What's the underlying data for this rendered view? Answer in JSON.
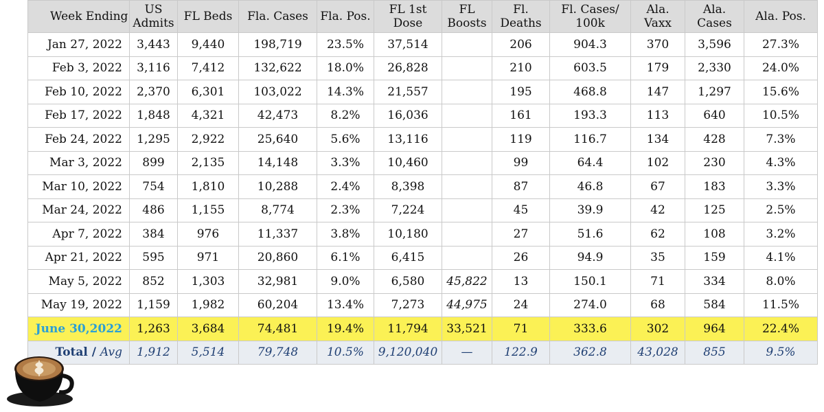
{
  "columns": [
    "Week Ending",
    "US Admits",
    "FL Beds",
    "Fla. Cases",
    "Fla. Pos.",
    "FL 1st Dose",
    "FL Boosts",
    "Fl. Deaths",
    "Fl. Cases/ 100k",
    "Ala. Vaxx",
    "Ala. Cases",
    "Ala. Pos."
  ],
  "rows": [
    {
      "week": "Jan 27, 2022",
      "us_admits": "3,443",
      "fl_beds": "9,440",
      "fla_cases": "198,719",
      "fla_pos": "23.5%",
      "fl_1st_dose": "37,514",
      "fl_boosts": "",
      "fl_deaths": "206",
      "fl_cases_100k": "904.3",
      "ala_vaxx": "370",
      "ala_cases": "3,596",
      "ala_pos": "27.3%"
    },
    {
      "week": "Feb 3, 2022",
      "us_admits": "3,116",
      "fl_beds": "7,412",
      "fla_cases": "132,622",
      "fla_pos": "18.0%",
      "fl_1st_dose": "26,828",
      "fl_boosts": "",
      "fl_deaths": "210",
      "fl_cases_100k": "603.5",
      "ala_vaxx": "179",
      "ala_cases": "2,330",
      "ala_pos": "24.0%"
    },
    {
      "week": "Feb 10, 2022",
      "us_admits": "2,370",
      "fl_beds": "6,301",
      "fla_cases": "103,022",
      "fla_pos": "14.3%",
      "fl_1st_dose": "21,557",
      "fl_boosts": "",
      "fl_deaths": "195",
      "fl_cases_100k": "468.8",
      "ala_vaxx": "147",
      "ala_cases": "1,297",
      "ala_pos": "15.6%"
    },
    {
      "week": "Feb 17, 2022",
      "us_admits": "1,848",
      "fl_beds": "4,321",
      "fla_cases": "42,473",
      "fla_pos": "8.2%",
      "fl_1st_dose": "16,036",
      "fl_boosts": "",
      "fl_deaths": "161",
      "fl_cases_100k": "193.3",
      "ala_vaxx": "113",
      "ala_cases": "640",
      "ala_pos": "10.5%"
    },
    {
      "week": "Feb 24, 2022",
      "us_admits": "1,295",
      "fl_beds": "2,922",
      "fla_cases": "25,640",
      "fla_pos": "5.6%",
      "fl_1st_dose": "13,116",
      "fl_boosts": "",
      "fl_deaths": "119",
      "fl_cases_100k": "116.7",
      "ala_vaxx": "134",
      "ala_cases": "428",
      "ala_pos": "7.3%"
    },
    {
      "week": "Mar 3, 2022",
      "us_admits": "899",
      "fl_beds": "2,135",
      "fla_cases": "14,148",
      "fla_pos": "3.3%",
      "fl_1st_dose": "10,460",
      "fl_boosts": "",
      "fl_deaths": "99",
      "fl_cases_100k": "64.4",
      "ala_vaxx": "102",
      "ala_cases": "230",
      "ala_pos": "4.3%"
    },
    {
      "week": "Mar 10, 2022",
      "us_admits": "754",
      "fl_beds": "1,810",
      "fla_cases": "10,288",
      "fla_pos": "2.4%",
      "fl_1st_dose": "8,398",
      "fl_boosts": "",
      "fl_deaths": "87",
      "fl_cases_100k": "46.8",
      "ala_vaxx": "67",
      "ala_cases": "183",
      "ala_pos": "3.3%"
    },
    {
      "week": "Mar 24, 2022",
      "us_admits": "486",
      "fl_beds": "1,155",
      "fla_cases": "8,774",
      "fla_pos": "2.3%",
      "fl_1st_dose": "7,224",
      "fl_boosts": "",
      "fl_deaths": "45",
      "fl_cases_100k": "39.9",
      "ala_vaxx": "42",
      "ala_cases": "125",
      "ala_pos": "2.5%"
    },
    {
      "week": "Apr 7, 2022",
      "us_admits": "384",
      "fl_beds": "976",
      "fla_cases": "11,337",
      "fla_pos": "3.8%",
      "fl_1st_dose": "10,180",
      "fl_boosts": "",
      "fl_deaths": "27",
      "fl_cases_100k": "51.6",
      "ala_vaxx": "62",
      "ala_cases": "108",
      "ala_pos": "3.2%"
    },
    {
      "week": "Apr 21, 2022",
      "us_admits": "595",
      "fl_beds": "971",
      "fla_cases": "20,860",
      "fla_pos": "6.1%",
      "fl_1st_dose": "6,415",
      "fl_boosts": "",
      "fl_deaths": "26",
      "fl_cases_100k": "94.9",
      "ala_vaxx": "35",
      "ala_cases": "159",
      "ala_pos": "4.1%"
    },
    {
      "week": "May 5, 2022",
      "us_admits": "852",
      "fl_beds": "1,303",
      "fla_cases": "32,981",
      "fla_pos": "9.0%",
      "fl_1st_dose": "6,580",
      "fl_boosts": "45,822",
      "fl_deaths": "13",
      "fl_cases_100k": "150.1",
      "ala_vaxx": "71",
      "ala_cases": "334",
      "ala_pos": "8.0%"
    },
    {
      "week": "May 19, 2022",
      "us_admits": "1,159",
      "fl_beds": "1,982",
      "fla_cases": "60,204",
      "fla_pos": "13.4%",
      "fl_1st_dose": "7,273",
      "fl_boosts": "44,975",
      "fl_deaths": "24",
      "fl_cases_100k": "274.0",
      "ala_vaxx": "68",
      "ala_cases": "584",
      "ala_pos": "11.5%"
    }
  ],
  "highlight_row": {
    "week": "June 30,2022",
    "us_admits": "1,263",
    "fl_beds": "3,684",
    "fla_cases": "74,481",
    "fla_pos": "19.4%",
    "fl_1st_dose": "11,794",
    "fl_boosts": "33,521",
    "fl_deaths": "71",
    "fl_cases_100k": "333.6",
    "ala_vaxx": "302",
    "ala_cases": "964",
    "ala_pos": "22.4%"
  },
  "total_row": {
    "label_total": "Total",
    "label_sep": " / ",
    "label_avg": "Avg",
    "us_admits": "1,912",
    "fl_beds": "5,514",
    "fla_cases": "79,748",
    "fla_pos": "10.5%",
    "fl_1st_dose": "9,120,040",
    "fl_boosts": "—",
    "fl_deaths": "122.9",
    "fl_cases_100k": "362.8",
    "ala_vaxx": "43,028",
    "ala_cases": "855",
    "ala_pos": "9.5%"
  },
  "colors": {
    "header_bg": "#dcdcdc",
    "highlight_bg": "#fbf155",
    "highlight_date": "#2b9fd6",
    "total_bg": "#e9edf2",
    "total_text": "#1f3f73"
  },
  "decoration": {
    "icon": "coffee-cup-icon"
  }
}
